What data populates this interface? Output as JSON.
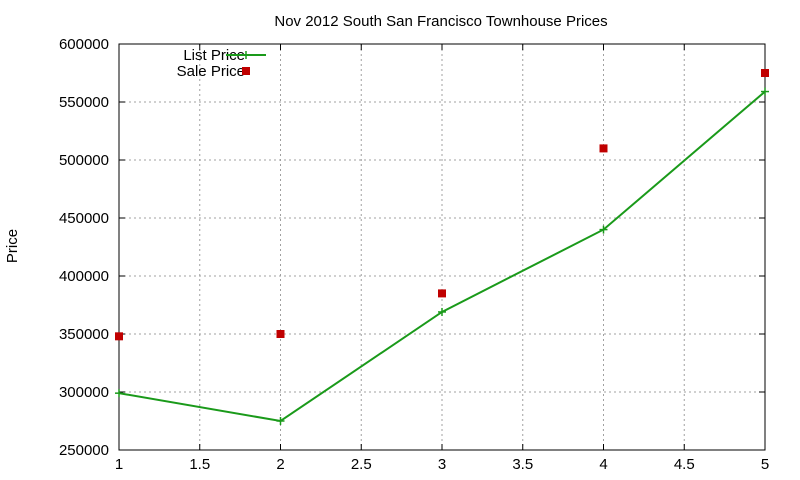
{
  "chart_data": {
    "type": "line",
    "title": "Nov 2012 South San Francisco Townhouse Prices",
    "xlabel": "",
    "ylabel": "Price",
    "xlim": [
      1,
      5
    ],
    "ylim": [
      250000,
      600000
    ],
    "x_ticks": [
      "1",
      "1.5",
      "2",
      "2.5",
      "3",
      "3.5",
      "4",
      "4.5",
      "5"
    ],
    "y_ticks": [
      "250000",
      "300000",
      "350000",
      "400000",
      "450000",
      "500000",
      "550000",
      "600000"
    ],
    "grid": true,
    "legend_position": "top-left",
    "series": [
      {
        "name": "List Price",
        "style": "line-with-plus-markers",
        "color": "#1a9a1a",
        "x": [
          1,
          2,
          3,
          4,
          5
        ],
        "values": [
          299000,
          275000,
          369000,
          440000,
          559000
        ]
      },
      {
        "name": "Sale Price",
        "style": "square-markers",
        "color": "#c00000",
        "x": [
          1,
          2,
          3,
          4,
          5
        ],
        "values": [
          348000,
          350000,
          385000,
          510000,
          575000
        ]
      }
    ]
  }
}
